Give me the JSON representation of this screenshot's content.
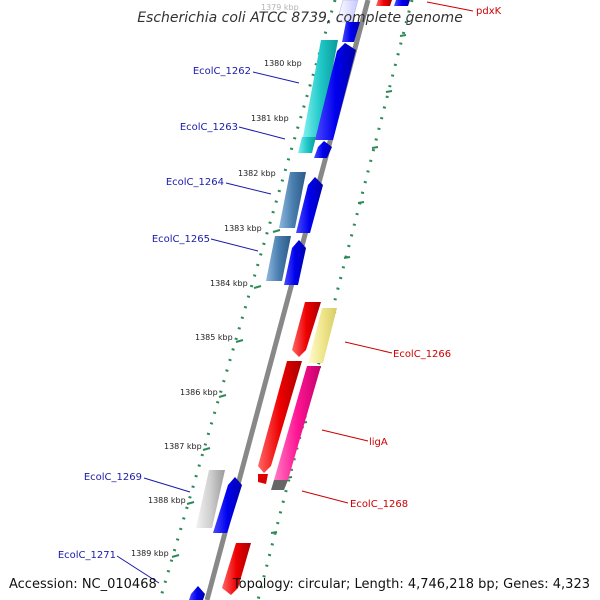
{
  "title": "Escherichia coli ATCC 8739, complete genome",
  "footer": {
    "accession": "Accession: NC_010468",
    "summary": "Topology: circular; Length: 4,746,218 bp; Genes: 4,323"
  },
  "colors": {
    "backbone": "#888888",
    "tick": "#2e8b57",
    "left_label": "#1a1aaa",
    "right_label": "#cc0000",
    "forward_arrow": "#0000ee",
    "reverse_arrow": "#ee0000",
    "cyan_feature": "#22cccc",
    "steel_feature": "#4a7fb0",
    "gray_feature": "#cccccc",
    "pale_yellow_feature": "#f0e68c",
    "pink_feature": "#ff1493"
  },
  "kbp_labels": [
    "1379 kbp",
    "1380 kbp",
    "1381 kbp",
    "1382 kbp",
    "1383 kbp",
    "1384 kbp",
    "1385 kbp",
    "1386 kbp",
    "1387 kbp",
    "1388 kbp",
    "1389 kbp"
  ],
  "left_genes": [
    "EcolC_1262",
    "EcolC_1263",
    "EcolC_1264",
    "EcolC_1265",
    "EcolC_1269",
    "EcolC_1271"
  ],
  "right_genes": [
    "pdxK",
    "EcolC_1266",
    "ligA",
    "EcolC_1268"
  ]
}
